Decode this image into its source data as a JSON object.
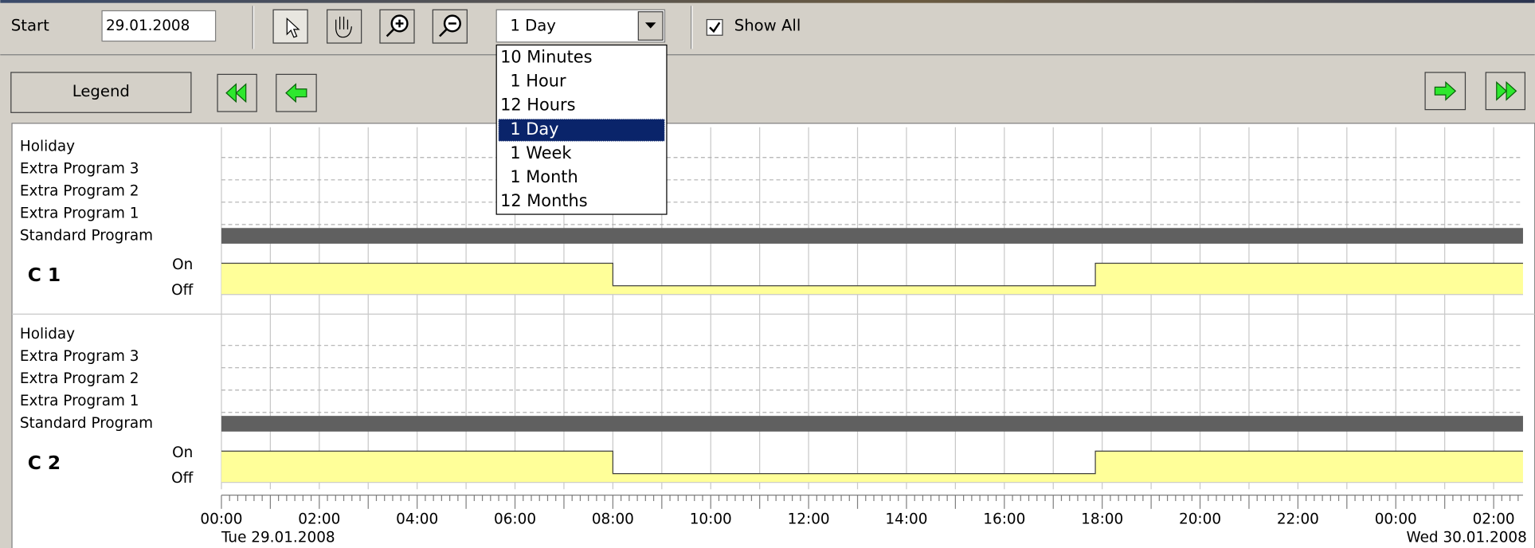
{
  "toolbar": {
    "start_label": "Start",
    "start_date": "29.01.2008",
    "range_selected": "1 Day",
    "range_options": [
      "10 Minutes",
      "1 Hour",
      "12 Hours",
      "1 Day",
      "1 Week",
      "1 Month",
      "12 Months"
    ],
    "show_all": "Show All"
  },
  "legend_button": "Legend",
  "channels": [
    {
      "name": "C 1",
      "rows": [
        "Holiday",
        "Extra Program 3",
        "Extra Program 2",
        "Extra Program 1",
        "Standard Program"
      ],
      "on": "On",
      "off": "Off"
    },
    {
      "name": "C 2",
      "rows": [
        "Holiday",
        "Extra Program 3",
        "Extra Program 2",
        "Extra Program 1",
        "Standard Program"
      ],
      "on": "On",
      "off": "Off"
    }
  ],
  "time_axis": {
    "labels": [
      "00:00",
      "02:00",
      "04:00",
      "06:00",
      "08:00",
      "10:00",
      "12:00",
      "14:00",
      "16:00",
      "18:00",
      "20:00",
      "22:00",
      "00:00",
      "02:00"
    ],
    "start_date": "Tue 29.01.2008",
    "end_date": "Wed 30.01.2008"
  }
}
